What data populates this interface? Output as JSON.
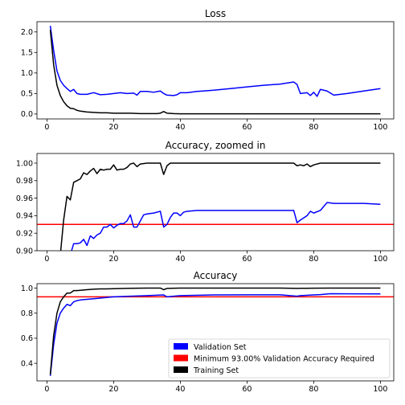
{
  "chart_data": [
    {
      "type": "line",
      "title": "Loss",
      "xlim": [
        -3,
        104
      ],
      "ylim": [
        -0.12,
        2.25
      ],
      "xticks": [
        0,
        20,
        40,
        60,
        80,
        100
      ],
      "yticks": [
        0.0,
        0.5,
        1.0,
        1.5,
        2.0
      ],
      "ytick_labels": [
        "0.0",
        "0.5",
        "1.0",
        "1.5",
        "2.0"
      ],
      "grid": false,
      "series": [
        {
          "role": "validation",
          "color": "#0000ff",
          "x": [
            1,
            2,
            3,
            4,
            5,
            6,
            7,
            8,
            9,
            10,
            12,
            14,
            16,
            18,
            20,
            22,
            24,
            26,
            27,
            28,
            30,
            32,
            34,
            35,
            36,
            38,
            39,
            40,
            42,
            45,
            50,
            55,
            60,
            65,
            70,
            74,
            75,
            76,
            78,
            79,
            80,
            81,
            82,
            84,
            86,
            90,
            95,
            100
          ],
          "y": [
            2.15,
            1.55,
            1.05,
            0.82,
            0.7,
            0.62,
            0.55,
            0.6,
            0.5,
            0.48,
            0.48,
            0.52,
            0.47,
            0.48,
            0.5,
            0.52,
            0.5,
            0.51,
            0.46,
            0.55,
            0.55,
            0.53,
            0.56,
            0.5,
            0.46,
            0.45,
            0.47,
            0.52,
            0.52,
            0.55,
            0.58,
            0.62,
            0.66,
            0.7,
            0.73,
            0.78,
            0.72,
            0.5,
            0.52,
            0.45,
            0.53,
            0.43,
            0.6,
            0.56,
            0.46,
            0.5,
            0.56,
            0.62
          ]
        },
        {
          "role": "training",
          "color": "#000000",
          "x": [
            1,
            2,
            3,
            4,
            5,
            6,
            7,
            8,
            9,
            10,
            12,
            14,
            16,
            18,
            20,
            22,
            25,
            28,
            30,
            33,
            34,
            35,
            36,
            38,
            40,
            50,
            60,
            70,
            80,
            90,
            100
          ],
          "y": [
            2.05,
            1.2,
            0.7,
            0.45,
            0.3,
            0.2,
            0.14,
            0.13,
            0.09,
            0.07,
            0.05,
            0.04,
            0.03,
            0.03,
            0.02,
            0.02,
            0.02,
            0.01,
            0.01,
            0.01,
            0.02,
            0.06,
            0.02,
            0.01,
            0.005,
            0.005,
            0.005,
            0.005,
            0.005,
            0.005,
            0.005
          ]
        }
      ]
    },
    {
      "type": "line",
      "title": "Accuracy, zoomed in",
      "xlim": [
        -3,
        104
      ],
      "ylim": [
        0.9,
        1.011
      ],
      "xticks": [
        0,
        20,
        40,
        60,
        80,
        100
      ],
      "yticks": [
        0.9,
        0.92,
        0.94,
        0.96,
        0.98,
        1.0
      ],
      "ytick_labels": [
        "0.90",
        "0.92",
        "0.94",
        "0.96",
        "0.98",
        "1.00"
      ],
      "grid": false,
      "threshold": 0.93,
      "series": [
        {
          "role": "validation",
          "color": "#0000ff",
          "x": [
            7,
            8,
            9,
            10,
            11,
            12,
            13,
            14,
            15,
            16,
            17,
            18,
            19,
            20,
            21,
            22,
            23,
            24,
            25,
            26,
            27,
            28,
            29,
            30,
            32,
            34,
            35,
            36,
            37,
            38,
            39,
            40,
            41,
            42,
            45,
            50,
            55,
            60,
            65,
            70,
            74,
            75,
            76,
            78,
            79,
            80,
            82,
            84,
            86,
            90,
            95,
            100
          ],
          "y": [
            0.895,
            0.908,
            0.908,
            0.909,
            0.913,
            0.906,
            0.917,
            0.914,
            0.918,
            0.92,
            0.927,
            0.927,
            0.93,
            0.926,
            0.929,
            0.931,
            0.931,
            0.934,
            0.941,
            0.927,
            0.927,
            0.934,
            0.941,
            0.942,
            0.943,
            0.945,
            0.927,
            0.93,
            0.938,
            0.943,
            0.943,
            0.94,
            0.944,
            0.945,
            0.946,
            0.946,
            0.946,
            0.946,
            0.946,
            0.946,
            0.946,
            0.932,
            0.935,
            0.94,
            0.945,
            0.943,
            0.946,
            0.955,
            0.954,
            0.954,
            0.954,
            0.953
          ]
        },
        {
          "role": "training",
          "color": "#000000",
          "x": [
            4,
            5,
            6,
            7,
            8,
            9,
            10,
            11,
            12,
            13,
            14,
            15,
            16,
            17,
            18,
            19,
            20,
            21,
            22,
            23,
            24,
            25,
            26,
            27,
            28,
            30,
            32,
            34,
            35,
            36,
            37,
            38,
            40,
            50,
            60,
            70,
            74,
            75,
            76,
            77,
            78,
            79,
            80,
            82,
            85,
            90,
            100
          ],
          "y": [
            0.895,
            0.935,
            0.962,
            0.958,
            0.978,
            0.98,
            0.982,
            0.989,
            0.987,
            0.991,
            0.994,
            0.988,
            0.993,
            0.992,
            0.993,
            0.993,
            0.998,
            0.992,
            0.993,
            0.993,
            0.995,
            0.999,
            1.0,
            0.996,
            0.999,
            1.0,
            1.0,
            1.0,
            0.987,
            0.997,
            1.0,
            1.0,
            1.0,
            1.0,
            1.0,
            1.0,
            1.0,
            0.997,
            0.998,
            0.997,
            0.999,
            0.996,
            0.998,
            1.0,
            1.0,
            1.0,
            1.0
          ]
        }
      ]
    },
    {
      "type": "line",
      "title": "Accuracy",
      "xlim": [
        -3,
        104
      ],
      "ylim": [
        0.26,
        1.035
      ],
      "xticks": [
        0,
        20,
        40,
        60,
        80,
        100
      ],
      "yticks": [
        0.4,
        0.6,
        0.8,
        1.0
      ],
      "ytick_labels": [
        "0.4",
        "0.6",
        "0.8",
        "1.0"
      ],
      "grid": false,
      "threshold": 0.93,
      "legend": {
        "placement": "lower-right",
        "entries": [
          {
            "label": "Validation Set",
            "color": "#0000ff"
          },
          {
            "label": "Minimum 93.00% Validation Accuracy Required",
            "color": "#ff0000"
          },
          {
            "label": "Training Set",
            "color": "#000000"
          }
        ]
      },
      "series": [
        {
          "role": "validation",
          "color": "#0000ff",
          "x": [
            1,
            2,
            3,
            4,
            5,
            6,
            7,
            8,
            9,
            10,
            12,
            14,
            16,
            18,
            20,
            25,
            30,
            35,
            36,
            40,
            50,
            60,
            70,
            75,
            76,
            80,
            82,
            85,
            90,
            100
          ],
          "y": [
            0.3,
            0.55,
            0.72,
            0.8,
            0.84,
            0.87,
            0.86,
            0.89,
            0.9,
            0.905,
            0.91,
            0.915,
            0.92,
            0.925,
            0.93,
            0.935,
            0.94,
            0.945,
            0.93,
            0.94,
            0.945,
            0.946,
            0.946,
            0.935,
            0.94,
            0.945,
            0.948,
            0.955,
            0.954,
            0.953
          ]
        },
        {
          "role": "training",
          "color": "#000000",
          "x": [
            1,
            2,
            3,
            4,
            5,
            6,
            7,
            8,
            9,
            10,
            12,
            14,
            16,
            18,
            20,
            25,
            30,
            34,
            35,
            36,
            40,
            50,
            60,
            70,
            75,
            76,
            80,
            85,
            90,
            100
          ],
          "y": [
            0.31,
            0.62,
            0.8,
            0.89,
            0.93,
            0.96,
            0.96,
            0.98,
            0.98,
            0.982,
            0.987,
            0.991,
            0.993,
            0.993,
            0.995,
            0.998,
            1.0,
            1.0,
            0.987,
            0.997,
            1.0,
            1.0,
            1.0,
            1.0,
            0.997,
            0.998,
            0.999,
            1.0,
            1.0,
            1.0
          ]
        }
      ]
    }
  ]
}
